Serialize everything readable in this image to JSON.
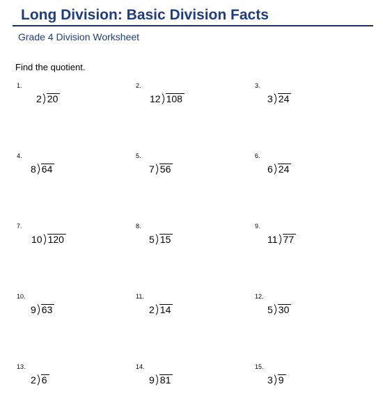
{
  "header": {
    "title": "Long Division: Basic Division Facts",
    "subtitle": "Grade 4 Division Worksheet"
  },
  "instructions": "Find the quotient.",
  "problems": [
    {
      "number": "1.",
      "divisor": "2",
      "dividend": "20"
    },
    {
      "number": "2.",
      "divisor": "12",
      "dividend": "108"
    },
    {
      "number": "3.",
      "divisor": "3",
      "dividend": "24"
    },
    {
      "number": "4.",
      "divisor": "8",
      "dividend": "64"
    },
    {
      "number": "5.",
      "divisor": "7",
      "dividend": "56"
    },
    {
      "number": "6.",
      "divisor": "6",
      "dividend": "24"
    },
    {
      "number": "7.",
      "divisor": "10",
      "dividend": "120"
    },
    {
      "number": "8.",
      "divisor": "5",
      "dividend": "15"
    },
    {
      "number": "9.",
      "divisor": "11",
      "dividend": "77"
    },
    {
      "number": "10.",
      "divisor": "9",
      "dividend": "63"
    },
    {
      "number": "11.",
      "divisor": "2",
      "dividend": "14"
    },
    {
      "number": "12.",
      "divisor": "5",
      "dividend": "30"
    },
    {
      "number": "13.",
      "divisor": "2",
      "dividend": "6"
    },
    {
      "number": "14.",
      "divisor": "9",
      "dividend": "81"
    },
    {
      "number": "15.",
      "divisor": "3",
      "dividend": "9"
    }
  ],
  "colors": {
    "title": "#1f3d85",
    "rule": "#1f2f55",
    "text": "#000000"
  }
}
